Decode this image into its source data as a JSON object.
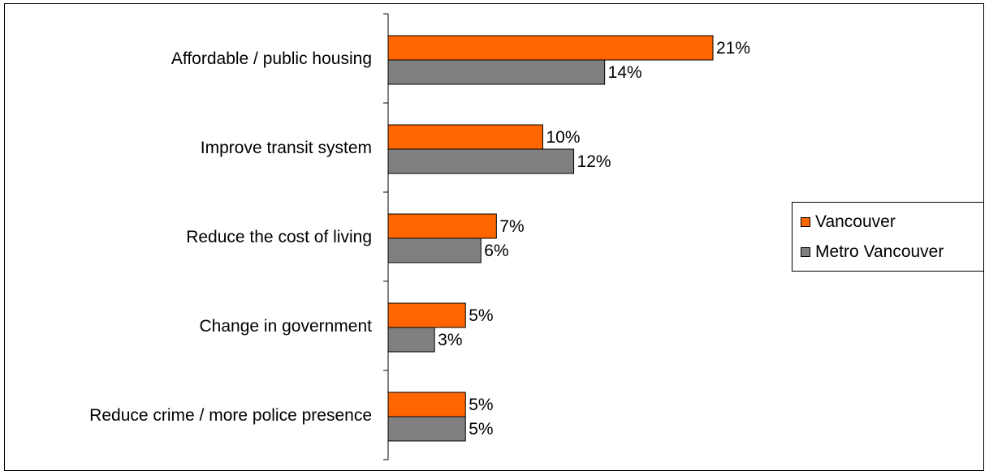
{
  "chart_data": {
    "type": "bar",
    "orientation": "horizontal",
    "categories": [
      "Affordable / public housing",
      "Improve transit system",
      "Reduce the cost of living",
      "Change in government",
      "Reduce crime / more police presence"
    ],
    "series": [
      {
        "name": "Vancouver",
        "values": [
          21,
          10,
          7,
          5,
          5
        ],
        "labels": [
          "21%",
          "10%",
          "7%",
          "5%",
          "5%"
        ],
        "color": "#ff6600"
      },
      {
        "name": "Metro Vancouver",
        "values": [
          14,
          12,
          6,
          3,
          5
        ],
        "labels": [
          "14%",
          "12%",
          "6%",
          "3%",
          "5%"
        ],
        "color": "#808080"
      }
    ],
    "xlim": [
      0,
      21
    ],
    "grid": false,
    "legend_position": "right"
  }
}
